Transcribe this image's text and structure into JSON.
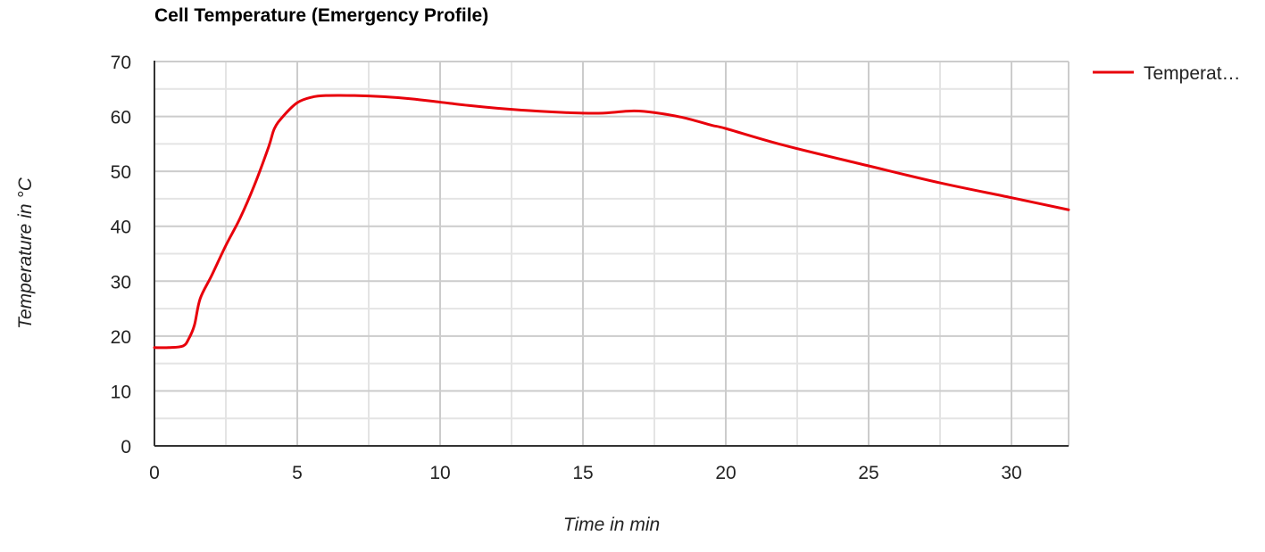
{
  "chart_data": {
    "type": "line",
    "title": "Cell Temperature (Emergency Profile)",
    "xlabel": "Time in min",
    "ylabel": "Temperature in °C",
    "xlim": [
      0,
      32
    ],
    "ylim": [
      0,
      70
    ],
    "x_ticks": [
      0,
      5,
      10,
      15,
      20,
      25,
      30
    ],
    "y_ticks": [
      0,
      10,
      20,
      30,
      40,
      50,
      60,
      70
    ],
    "x_tick_labels": [
      "0",
      "5",
      "10",
      "15",
      "20",
      "25",
      "30"
    ],
    "y_tick_labels": [
      "0",
      "10",
      "20",
      "30",
      "40",
      "50",
      "60",
      "70"
    ],
    "grid": true,
    "minor_grid": true,
    "legend_position": "top-right",
    "series": [
      {
        "name": "Temperature",
        "legend_label": "Temperat…",
        "color": "#e8000b",
        "x": [
          0,
          0.5,
          1.0,
          1.2,
          1.4,
          1.6,
          2.0,
          2.5,
          3.0,
          3.5,
          4.0,
          4.2,
          4.5,
          5.0,
          5.5,
          6.0,
          7.0,
          8.0,
          9.0,
          10.0,
          11.0,
          12.0,
          13.0,
          14.0,
          15.0,
          15.7,
          16.2,
          16.8,
          17.5,
          18.5,
          19.5,
          20.0,
          22.0,
          25.0,
          27.5,
          30.0,
          32.0
        ],
        "y": [
          17.9,
          17.9,
          18.2,
          19.5,
          22.0,
          26.8,
          31.0,
          36.5,
          41.5,
          47.5,
          54.5,
          57.8,
          60.0,
          62.5,
          63.5,
          63.8,
          63.8,
          63.6,
          63.2,
          62.6,
          62.0,
          61.5,
          61.1,
          60.8,
          60.6,
          60.6,
          60.8,
          61.0,
          60.7,
          59.8,
          58.4,
          57.8,
          54.8,
          51.0,
          47.9,
          45.2,
          43.0
        ]
      }
    ]
  }
}
